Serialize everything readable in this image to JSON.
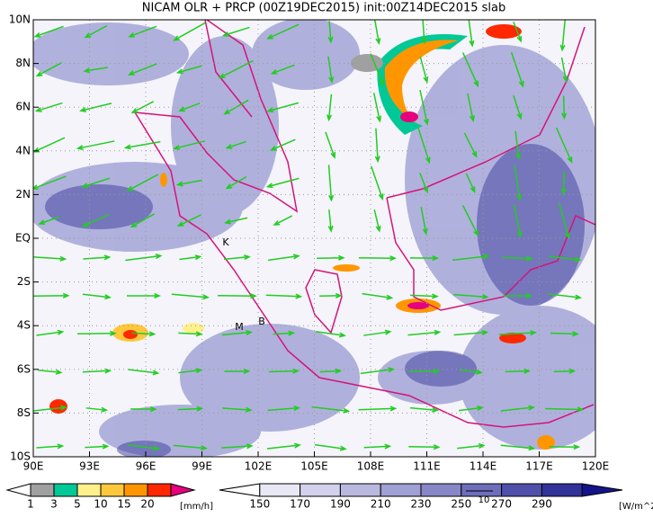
{
  "title": "NICAM OLR + PRCP (00Z19DEC2015) init:00Z14DEC2015 slab",
  "lon_ticks": [
    {
      "value": 90,
      "label": "90E"
    },
    {
      "value": 93,
      "label": "93E"
    },
    {
      "value": 96,
      "label": "96E"
    },
    {
      "value": 99,
      "label": "99E"
    },
    {
      "value": 102,
      "label": "102E"
    },
    {
      "value": 105,
      "label": "105E"
    },
    {
      "value": 108,
      "label": "108E"
    },
    {
      "value": 111,
      "label": "111E"
    },
    {
      "value": 114,
      "label": "114E"
    },
    {
      "value": 117,
      "label": "117E"
    },
    {
      "value": 120,
      "label": "120E"
    }
  ],
  "lat_ticks": [
    {
      "value": 10,
      "label": "10N"
    },
    {
      "value": 8,
      "label": "8N"
    },
    {
      "value": 6,
      "label": "6N"
    },
    {
      "value": 4,
      "label": "4N"
    },
    {
      "value": 2,
      "label": "2N"
    },
    {
      "value": 0,
      "label": "EQ"
    },
    {
      "value": -2,
      "label": "2S"
    },
    {
      "value": -4,
      "label": "4S"
    },
    {
      "value": -6,
      "label": "6S"
    },
    {
      "value": -8,
      "label": "8S"
    },
    {
      "value": -10,
      "label": "10S"
    }
  ],
  "stations": [
    "K",
    "M",
    "B"
  ],
  "vector_ref": "10",
  "prcp_legend": {
    "levels": [
      1,
      3,
      5,
      10,
      15,
      20
    ],
    "unit": "[mm/h]",
    "colors": [
      "#ffffff",
      "#a0a0a0",
      "#00c896",
      "#fff08c",
      "#ffc83c",
      "#ff9600",
      "#ff2800",
      "#e6007e"
    ]
  },
  "olr_legend": {
    "levels": [
      150,
      170,
      190,
      210,
      230,
      250,
      270,
      290
    ],
    "unit": "[W/m^2]",
    "colors": [
      "#ffffff",
      "#e8e8f4",
      "#d2d2ec",
      "#b9b9e0",
      "#a0a0d4",
      "#8787c8",
      "#6e6ebc",
      "#5050aa",
      "#32329a",
      "#14148a"
    ]
  }
}
